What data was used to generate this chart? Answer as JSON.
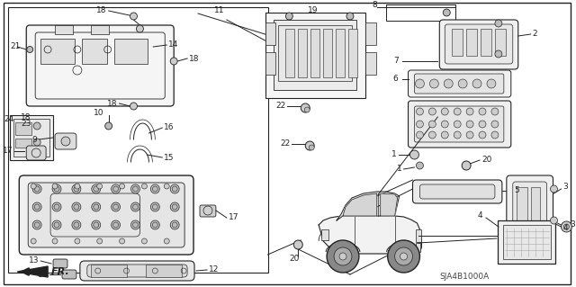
{
  "bg_color": "#ffffff",
  "line_color": "#222222",
  "gray": "#666666",
  "light_gray": "#aaaaaa",
  "diagram_code": "SJA4B1000A",
  "fig_width": 6.4,
  "fig_height": 3.19,
  "dpi": 100
}
